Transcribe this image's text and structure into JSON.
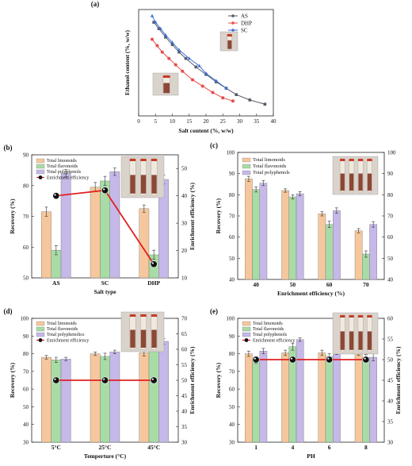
{
  "colors": {
    "AS": "#555a66",
    "DHP": "#e84b4b",
    "SC": "#3b6fd8",
    "limonoids": "#f6c79c",
    "flavonoids": "#a8dca6",
    "polyphenols": "#c6b8e8",
    "efficiency": "#e02020"
  },
  "chart_data": [
    {
      "id": "a",
      "panel_label": "(a)",
      "type": "line",
      "xlabel": "Salt content (%, w/w)",
      "ylabel": "Ethanol content (%, w/w)",
      "xlim": [
        0,
        40
      ],
      "xticks": [
        "0",
        "5",
        "10",
        "15",
        "20",
        "25",
        "30",
        "35",
        "40"
      ],
      "legend": "top-right",
      "grid": false,
      "series": [
        {
          "name": "AS",
          "marker": "square",
          "x": [
            4.5,
            6,
            8,
            10,
            12,
            14,
            17,
            20,
            23,
            26,
            29,
            33,
            37.5
          ],
          "y": [
            44,
            41,
            37,
            33.5,
            30,
            27,
            23,
            19.5,
            16,
            13,
            10,
            7.5,
            5.5
          ]
        },
        {
          "name": "DHP",
          "marker": "circle",
          "x": [
            4,
            5.5,
            7,
            9,
            11,
            13,
            16,
            19,
            22,
            25,
            28
          ],
          "y": [
            36,
            33,
            30,
            27,
            24,
            21,
            17,
            14,
            11,
            8.5,
            7
          ]
        },
        {
          "name": "SC",
          "marker": "triangle",
          "x": [
            4,
            5,
            6.5,
            8,
            10,
            12,
            15,
            18,
            20,
            23,
            26
          ],
          "y": [
            47,
            44,
            41,
            38,
            34.5,
            31,
            27,
            23.5,
            20,
            16.5,
            13
          ]
        }
      ]
    },
    {
      "id": "b",
      "panel_label": "(b)",
      "type": "bar",
      "xlabel": "Salt type",
      "ylabel": "Recovery (%)",
      "y2label": "Enrichment efficiency (%)",
      "categories": [
        "AS",
        "SC",
        "DHP"
      ],
      "ylim": [
        50,
        90
      ],
      "yticks": [
        "50",
        "60",
        "70",
        "80",
        "90"
      ],
      "y2lim": [
        10,
        55
      ],
      "y2ticks": [
        "10",
        "20",
        "30",
        "40",
        "50"
      ],
      "legend": "top-left",
      "series": [
        {
          "name": "Total limonoids",
          "values": [
            71.5,
            79.5,
            72.5
          ],
          "errors": [
            1.5,
            1.5,
            1.2
          ]
        },
        {
          "name": "Total flavonoids",
          "values": [
            59,
            81.5,
            57.5
          ],
          "errors": [
            1.5,
            1.5,
            1.5
          ]
        },
        {
          "name": "Total polyphenols",
          "values": [
            84,
            84.5,
            82
          ],
          "errors": [
            1.2,
            1.2,
            1.5
          ]
        }
      ],
      "line": {
        "name": "Enrichment efficiency",
        "values": [
          40,
          42,
          15
        ]
      }
    },
    {
      "id": "c",
      "panel_label": "(c)",
      "type": "bar",
      "xlabel": "Enrichment efficiency (%)",
      "ylabel": "Recovery (%)",
      "categories": [
        "40",
        "50",
        "60",
        "70"
      ],
      "ylim": [
        40,
        100
      ],
      "yticks": [
        "40",
        "50",
        "60",
        "70",
        "80",
        "90",
        "100"
      ],
      "y2lim": [
        40,
        100
      ],
      "y2ticks": [
        "40",
        "50",
        "60",
        "70",
        "80",
        "90",
        "100"
      ],
      "legend": "top-left",
      "series": [
        {
          "name": "Total limonoids",
          "values": [
            87.5,
            82,
            71,
            63
          ],
          "errors": [
            1.2,
            0.8,
            1.0,
            1.0
          ]
        },
        {
          "name": "Total flavonoids",
          "values": [
            82.5,
            79,
            66,
            52
          ],
          "errors": [
            1.2,
            1.0,
            1.5,
            1.5
          ]
        },
        {
          "name": "Total polyphenols",
          "values": [
            85.5,
            80.5,
            72.5,
            66
          ],
          "errors": [
            1.2,
            1.0,
            1.3,
            1.3
          ]
        }
      ]
    },
    {
      "id": "d",
      "panel_label": "(d)",
      "type": "bar",
      "xlabel": "Temperture (°C)",
      "ylabel": "Recovery (%)",
      "y2label": "Enrichment efficiency (%)",
      "categories": [
        "5°C",
        "25°C",
        "45°C"
      ],
      "ylim": [
        30,
        100
      ],
      "yticks": [
        "30",
        "40",
        "50",
        "60",
        "70",
        "80",
        "90",
        "100"
      ],
      "y2lim": [
        30,
        70
      ],
      "y2ticks": [
        "30",
        "35",
        "40",
        "45",
        "50",
        "55",
        "60",
        "65",
        "70"
      ],
      "legend": "top-left",
      "series": [
        {
          "name": "Total limonoids",
          "values": [
            78,
            80,
            80.5
          ],
          "errors": [
            1.0,
            1.0,
            1.8
          ]
        },
        {
          "name": "Total flavonoids",
          "values": [
            76.5,
            78.5,
            84.5
          ],
          "errors": [
            1.5,
            1.8,
            2.0
          ]
        },
        {
          "name": "Total polyphenolics",
          "values": [
            77,
            81,
            87
          ],
          "errors": [
            1.0,
            1.0,
            1.5
          ]
        }
      ],
      "line": {
        "name": "Enrichment efficiency",
        "values": [
          50,
          50,
          50
        ]
      }
    },
    {
      "id": "e",
      "panel_label": "(e)",
      "type": "bar",
      "xlabel": "PH",
      "ylabel": "Recovery (%)",
      "y2label": "Enrichment efficiency (%)",
      "categories": [
        "1",
        "4",
        "6",
        "8"
      ],
      "ylim": [
        30,
        100
      ],
      "yticks": [
        "30",
        "40",
        "50",
        "60",
        "70",
        "80",
        "90",
        "100"
      ],
      "y2lim": [
        30,
        60
      ],
      "y2ticks": [
        "30",
        "35",
        "40",
        "45",
        "50",
        "55",
        "60"
      ],
      "legend": "top-left",
      "series": [
        {
          "name": "Total limonoids",
          "values": [
            80,
            80.5,
            80.5,
            80.5
          ],
          "errors": [
            1.5,
            1.5,
            1.5,
            1.5
          ]
        },
        {
          "name": "Total flavonoids",
          "values": [
            76.5,
            84,
            78.5,
            78
          ],
          "errors": [
            2.0,
            2.0,
            1.5,
            1.5
          ]
        },
        {
          "name": "Total polyphenols",
          "values": [
            81.5,
            88,
            81,
            78
          ],
          "errors": [
            1.5,
            1.0,
            1.5,
            2.0
          ]
        }
      ],
      "line": {
        "name": "Enrichment efficiency",
        "values": [
          50,
          50,
          50,
          50
        ]
      }
    }
  ]
}
